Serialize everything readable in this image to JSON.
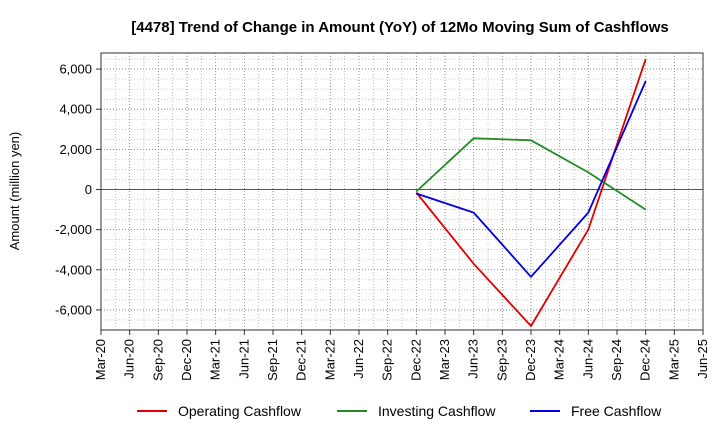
{
  "chart_data": {
    "type": "line",
    "title": "[4478]  Trend of Change in Amount (YoY) of 12Mo Moving Sum of Cashflows",
    "ylabel": "Amount (million yen)",
    "xlabel": "",
    "ylim": [
      -7000,
      6800
    ],
    "yticks": [
      6000,
      4000,
      2000,
      0,
      -2000,
      -4000,
      -6000
    ],
    "ytick_labels": [
      "6,000",
      "4,000",
      "2,000",
      "0",
      "-2,000",
      "-4,000",
      "-6,000"
    ],
    "categories": [
      "Mar-20",
      "Jun-20",
      "Sep-20",
      "Dec-20",
      "Mar-21",
      "Jun-21",
      "Sep-21",
      "Dec-21",
      "Mar-22",
      "Jun-22",
      "Sep-22",
      "Dec-22",
      "Mar-23",
      "Jun-23",
      "Sep-23",
      "Dec-23",
      "Mar-24",
      "Jun-24",
      "Sep-24",
      "Dec-24",
      "Mar-25",
      "Jun-25"
    ],
    "grid": true,
    "legend_position": "bottom",
    "series": [
      {
        "name": "Operating Cashflow",
        "color": "#e00000",
        "values": [
          null,
          null,
          null,
          null,
          null,
          null,
          null,
          null,
          null,
          null,
          null,
          -150,
          null,
          -3700,
          null,
          -6800,
          null,
          -2000,
          null,
          6500,
          null,
          null
        ]
      },
      {
        "name": "Investing Cashflow",
        "color": "#228b22",
        "values": [
          null,
          null,
          null,
          null,
          null,
          null,
          null,
          null,
          null,
          null,
          null,
          -100,
          null,
          2550,
          null,
          2450,
          null,
          850,
          null,
          -1000,
          null,
          null
        ]
      },
      {
        "name": "Free Cashflow",
        "color": "#0000e0",
        "values": [
          null,
          null,
          null,
          null,
          null,
          null,
          null,
          null,
          null,
          null,
          null,
          -200,
          null,
          -1150,
          null,
          -4350,
          null,
          -1150,
          null,
          5400,
          null,
          null
        ]
      }
    ]
  }
}
